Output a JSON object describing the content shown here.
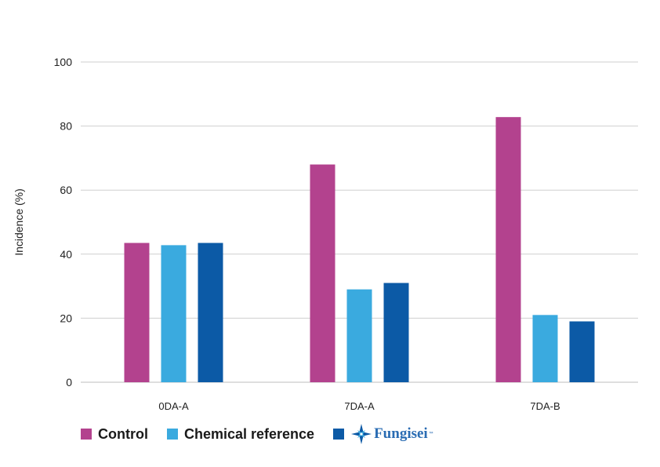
{
  "chart_data": {
    "type": "bar",
    "title": "",
    "xlabel": "",
    "ylabel": "Incidence (%)",
    "ylim": [
      0,
      100
    ],
    "yticks": [
      0,
      20,
      40,
      60,
      80,
      100
    ],
    "grid": true,
    "legend_position": "bottom-left",
    "categories": [
      "0DA-A",
      "7DA-A",
      "7DA-B"
    ],
    "series": [
      {
        "name": "Control",
        "color": "#b3428e",
        "values": [
          43.5,
          68,
          82.8
        ]
      },
      {
        "name": "Chemical reference",
        "color": "#3aaadf",
        "values": [
          42.8,
          29,
          21
        ]
      },
      {
        "name": "Fungisei",
        "color": "#0c5aa6",
        "values": [
          43.5,
          31,
          19
        ]
      }
    ]
  },
  "legend": {
    "brand_name": "Fungisei",
    "brand_icon": "compass-star-icon",
    "brand_mark": "™"
  }
}
